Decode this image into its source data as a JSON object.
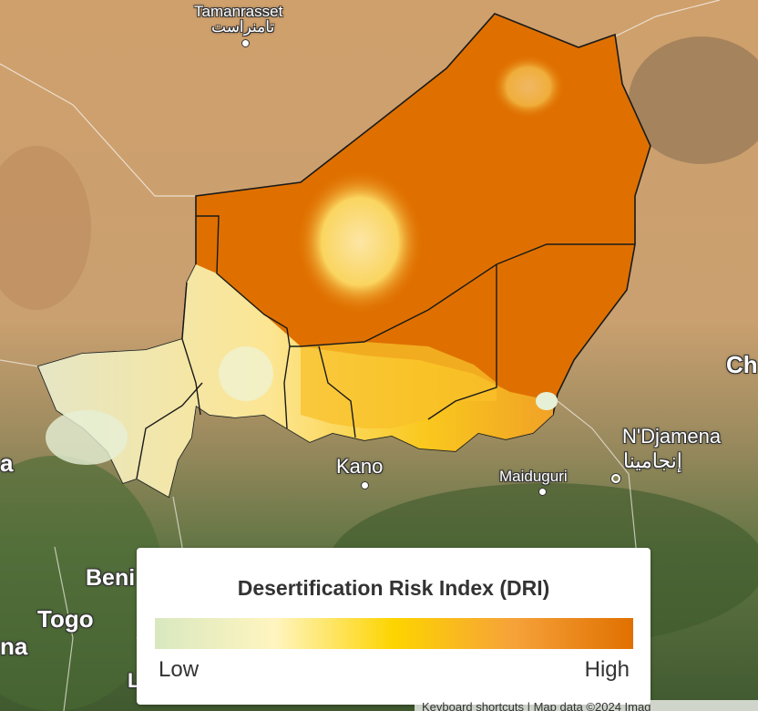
{
  "map": {
    "region": "Niger",
    "basemap": "satellite",
    "overlay_colors": {
      "low": "#d9e8c0",
      "mid": "#fdd400",
      "high": "#e07000"
    },
    "places": {
      "tamanrasset": "Tamanrasset",
      "tamanrasset_ar": "تامنراست",
      "kano": "Kano",
      "maiduguri": "Maiduguri",
      "ndjamena": "N'Djamena",
      "ndjamena_ar": "إنجامينا",
      "benin": "Beni",
      "togo": "Togo",
      "chad": "Ch",
      "left_a": "a",
      "left_na": "na",
      "left_l": "L"
    }
  },
  "legend": {
    "title": "Desertification Risk Index (DRI)",
    "low_label": "Low",
    "high_label": "High",
    "gradient": [
      "#d9e8c0",
      "#fff5c0",
      "#fdd400",
      "#f6a23a",
      "#e07000"
    ]
  },
  "attribution": {
    "text": "Keyboard shortcuts | Map data ©2024 Imag"
  }
}
